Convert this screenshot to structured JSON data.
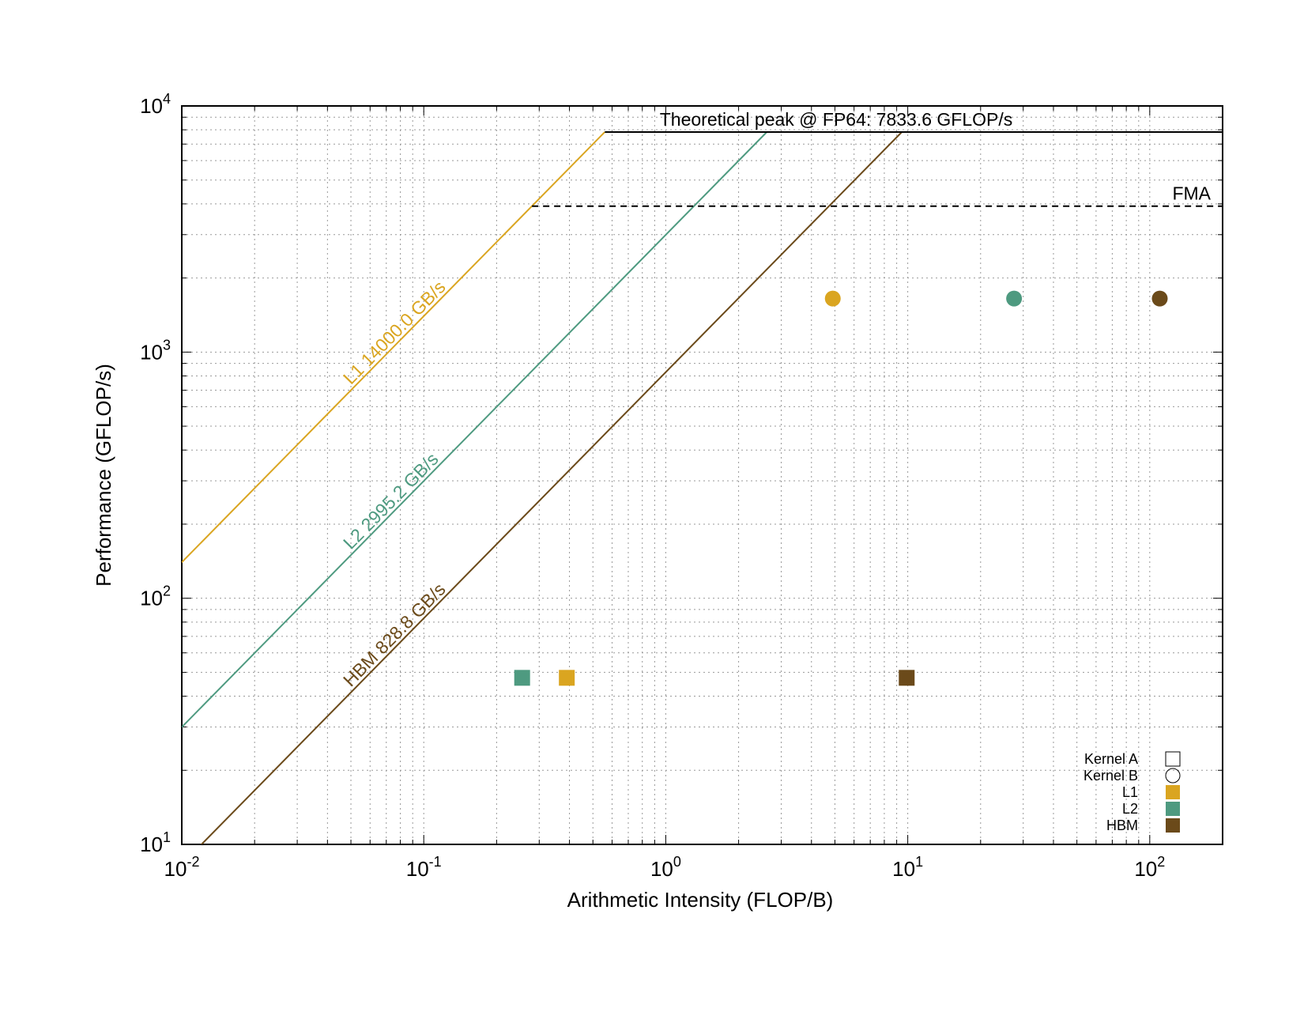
{
  "chart_data": {
    "type": "scatter",
    "xscale": "log",
    "yscale": "log",
    "xlim": [
      0.01,
      200
    ],
    "ylim": [
      10,
      10000
    ],
    "grid": true,
    "xlabel": "Arithmetic Intensity (FLOP/B)",
    "ylabel": "Performance (GFLOP/s)",
    "x_ticks": [
      {
        "value": 0.01,
        "base": "10",
        "exp": "-2"
      },
      {
        "value": 0.1,
        "base": "10",
        "exp": "-1"
      },
      {
        "value": 1,
        "base": "10",
        "exp": "0"
      },
      {
        "value": 10,
        "base": "10",
        "exp": "1"
      },
      {
        "value": 100,
        "base": "10",
        "exp": "2"
      }
    ],
    "y_ticks": [
      {
        "value": 10,
        "base": "10",
        "exp": "1"
      },
      {
        "value": 100,
        "base": "10",
        "exp": "2"
      },
      {
        "value": 1000,
        "base": "10",
        "exp": "3"
      },
      {
        "value": 10000,
        "base": "10",
        "exp": "4"
      }
    ],
    "ceilings": [
      {
        "label": "Theoretical peak @ FP64: 7833.6 GFLOP/s",
        "value": 7833.6,
        "style": "solid",
        "color": "#000000",
        "start_x": 0.56
      },
      {
        "label": "FMA",
        "value": 3916.8,
        "style": "dashed",
        "color": "#000000",
        "start_x": 0.28
      }
    ],
    "roofs": [
      {
        "label": "L1 14000.0 GB/s",
        "bandwidth": 14000.0,
        "color": "#DAA520",
        "label_x": 0.05
      },
      {
        "label": "L2 2995.2 GB/s",
        "bandwidth": 2995.2,
        "color": "#4E9A80",
        "label_x": 0.05
      },
      {
        "label": "HBM 828.8 GB/s",
        "bandwidth": 828.8,
        "color": "#6B4A1A",
        "label_x": 0.05
      }
    ],
    "series": [
      {
        "name": "Kernel A",
        "marker": "square",
        "points": [
          {
            "x": 0.255,
            "y": 47.5,
            "level": "L2",
            "color": "#4E9A80"
          },
          {
            "x": 0.39,
            "y": 47.5,
            "level": "L1",
            "color": "#DAA520"
          },
          {
            "x": 9.9,
            "y": 47.5,
            "level": "HBM",
            "color": "#6B4A1A"
          }
        ]
      },
      {
        "name": "Kernel B",
        "marker": "circle",
        "points": [
          {
            "x": 4.9,
            "y": 1650,
            "level": "L1",
            "color": "#DAA520"
          },
          {
            "x": 27.5,
            "y": 1650,
            "level": "L2",
            "color": "#4E9A80"
          },
          {
            "x": 110,
            "y": 1650,
            "level": "HBM",
            "color": "#6B4A1A"
          }
        ]
      }
    ],
    "legend": {
      "placement": "bottom-right",
      "entries": [
        {
          "label": "Kernel A",
          "marker": "square-outline"
        },
        {
          "label": "Kernel B",
          "marker": "circle-outline"
        },
        {
          "label": "L1",
          "marker": "square",
          "color": "#DAA520"
        },
        {
          "label": "L2",
          "marker": "square",
          "color": "#4E9A80"
        },
        {
          "label": "HBM",
          "marker": "square",
          "color": "#6B4A1A"
        }
      ]
    }
  }
}
